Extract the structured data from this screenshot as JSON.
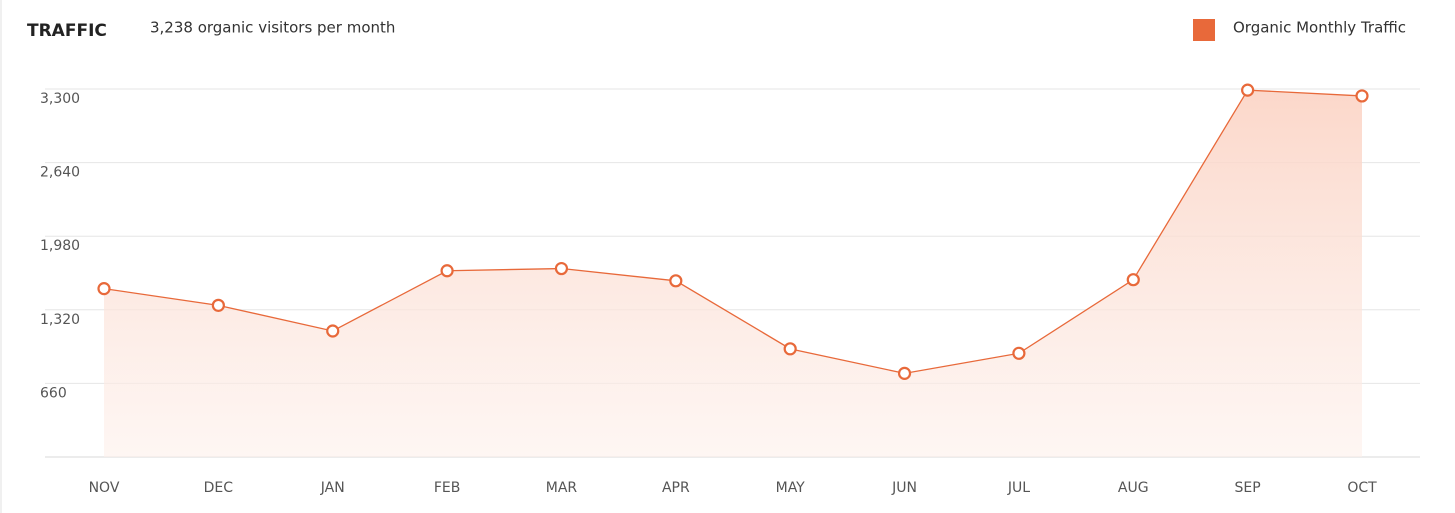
{
  "chart_data": {
    "type": "line",
    "title": "TRAFFIC",
    "subtitle": "3,238 organic visitors per month",
    "categories": [
      "NOV",
      "DEC",
      "JAN",
      "FEB",
      "MAR",
      "APR",
      "MAY",
      "JUN",
      "JUL",
      "AUG",
      "SEP",
      "OCT"
    ],
    "series": [
      {
        "name": "Organic Monthly Traffic",
        "color": "#e8693a",
        "values": [
          1510,
          1360,
          1130,
          1670,
          1690,
          1580,
          970,
          750,
          930,
          1590,
          3290,
          3238
        ]
      }
    ],
    "ylim": [
      0,
      3300
    ],
    "yticks": [
      660,
      {
        "value": 1320,
        "label": "1,320"
      },
      {
        "value": 1980,
        "label": "1,980"
      },
      {
        "value": 2640,
        "label": "2,640"
      },
      {
        "value": 3300,
        "label": "3,300"
      }
    ],
    "grid": true,
    "legend": "top-right"
  }
}
